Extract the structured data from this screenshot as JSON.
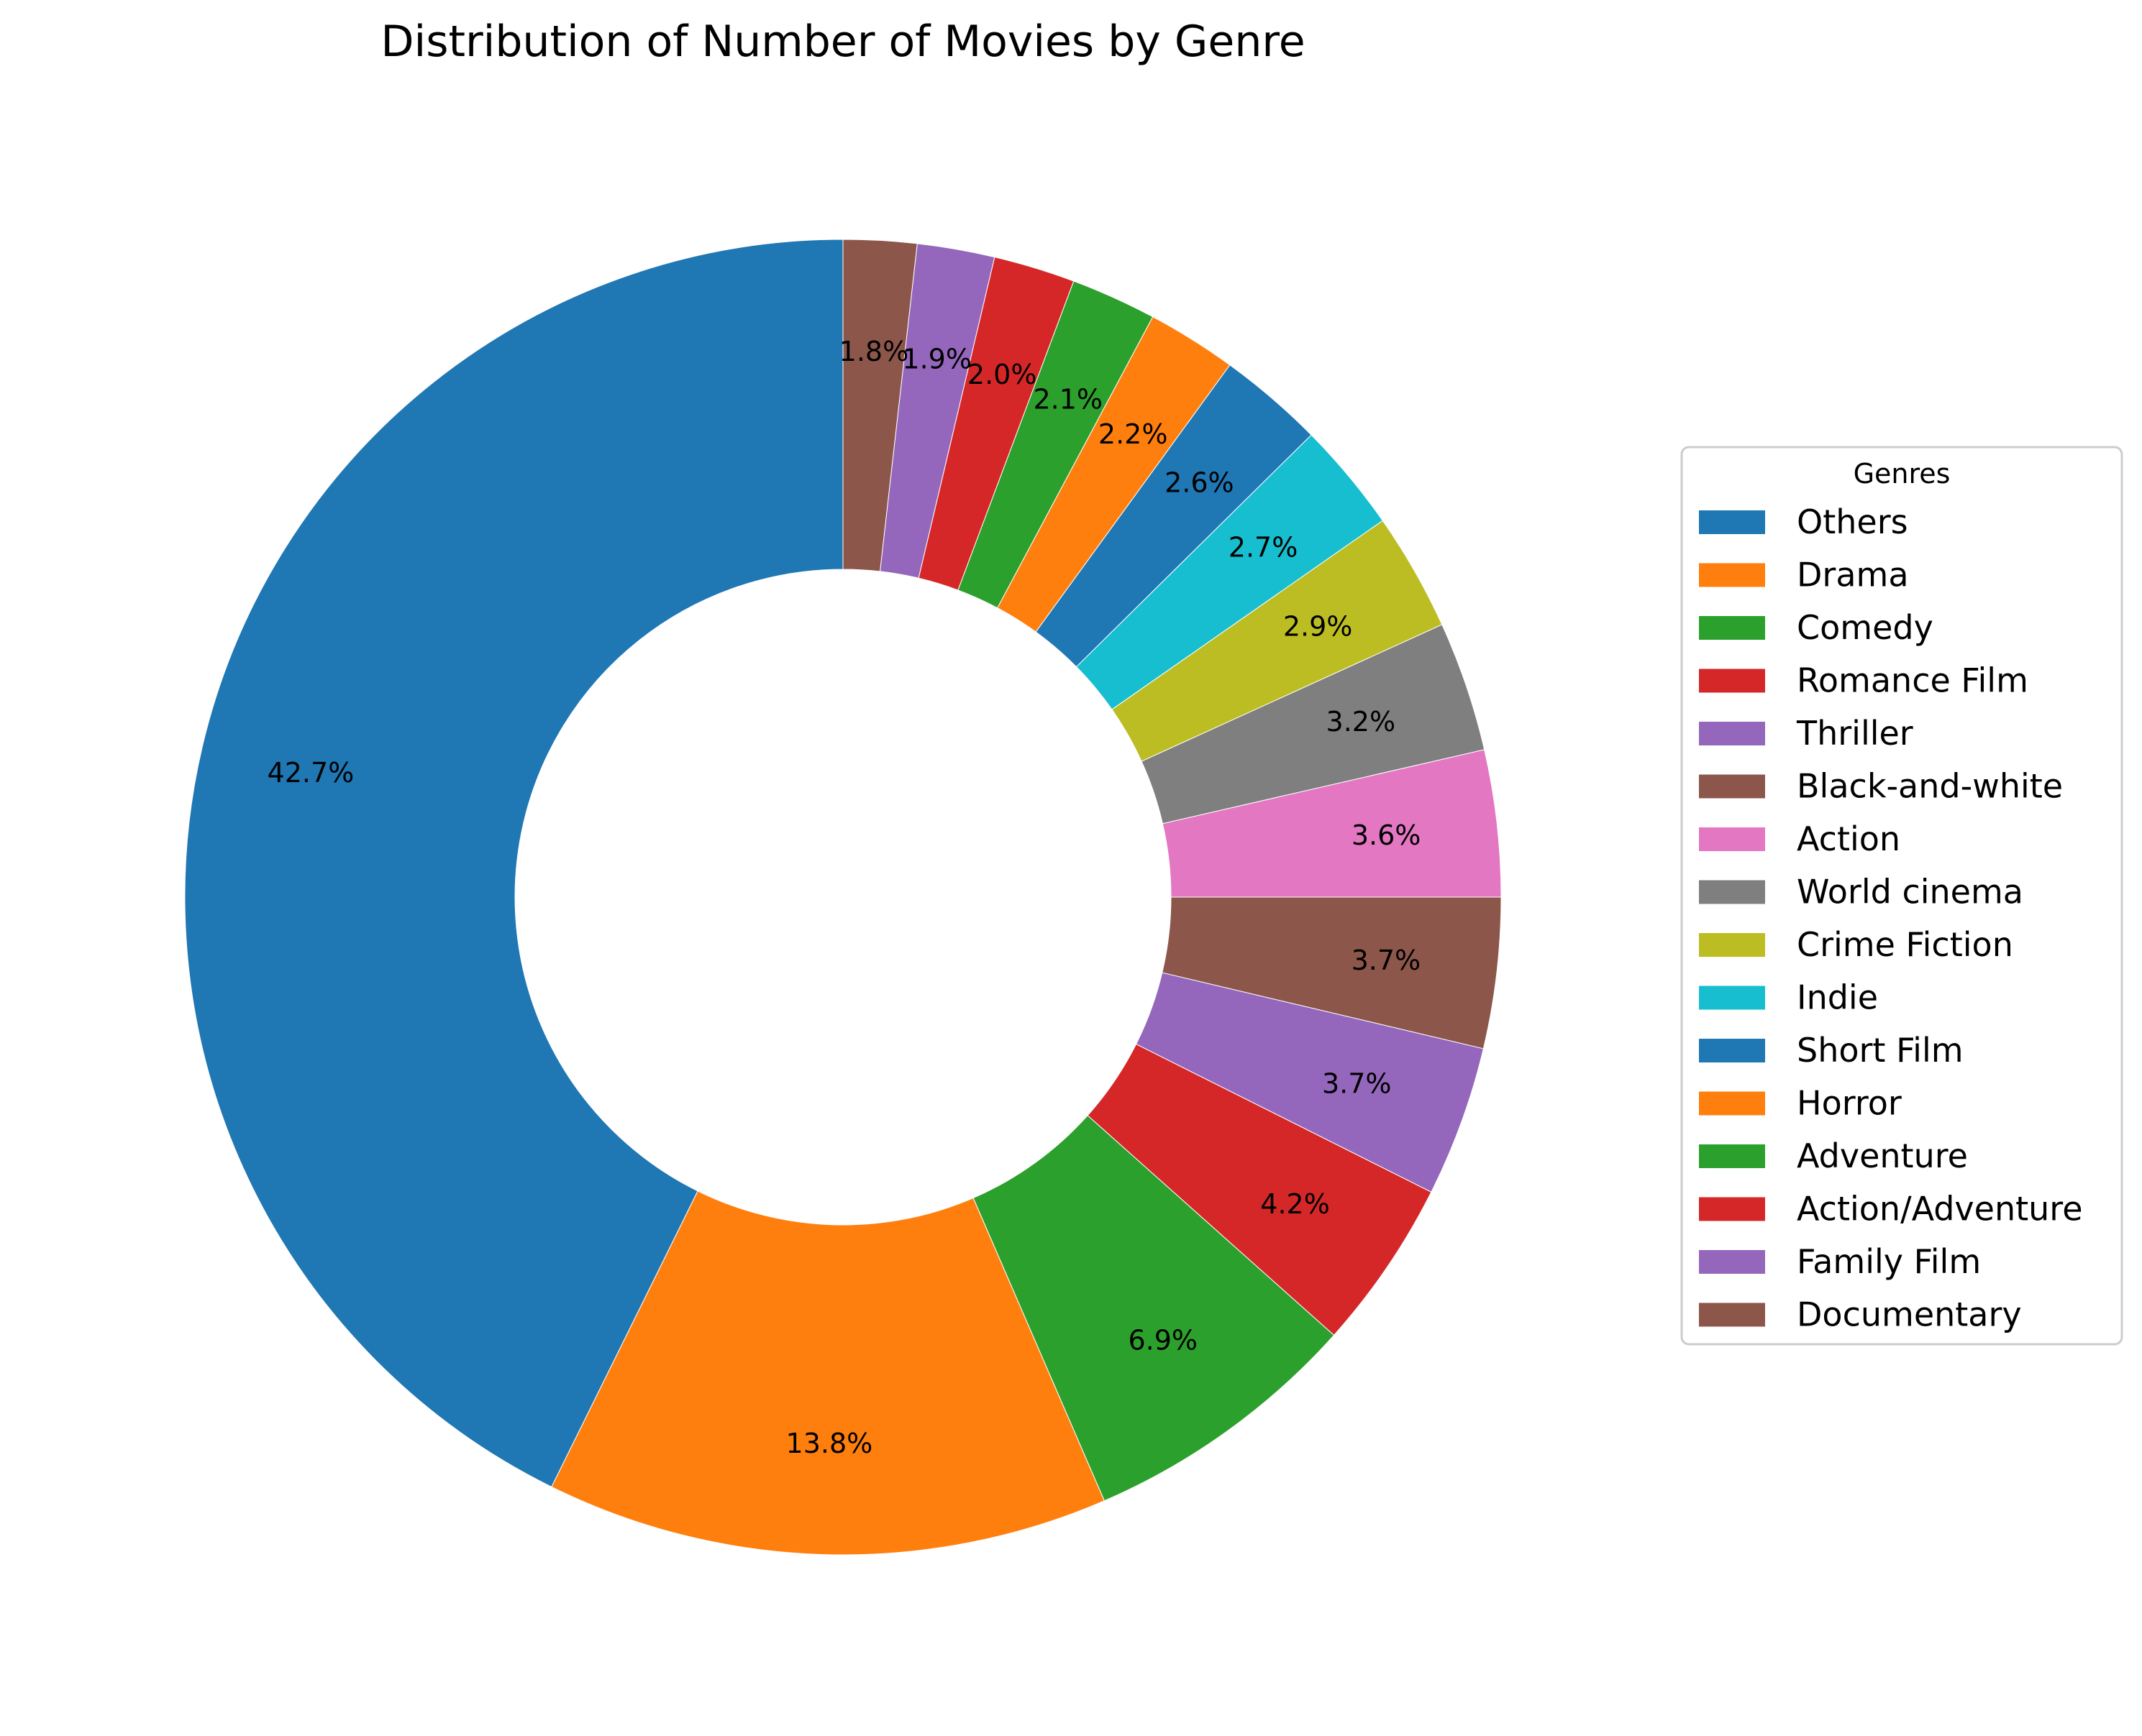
{
  "chart_data": {
    "type": "pie",
    "style": "donut",
    "title": "Distribution of Number of Movies by Genre",
    "legend_title": "Genres",
    "legend_placement": "right",
    "start_angle_deg": 90,
    "direction": "counterclockwise",
    "slices": [
      {
        "label": "Others",
        "value": 42.7,
        "pct_label": "42.7%",
        "color": "#1f77b4"
      },
      {
        "label": "Drama",
        "value": 13.8,
        "pct_label": "13.8%",
        "color": "#ff7f0e"
      },
      {
        "label": "Comedy",
        "value": 6.9,
        "pct_label": "6.9%",
        "color": "#2ca02c"
      },
      {
        "label": "Romance Film",
        "value": 4.2,
        "pct_label": "4.2%",
        "color": "#d62728"
      },
      {
        "label": "Thriller",
        "value": 3.7,
        "pct_label": "3.7%",
        "color": "#9467bd"
      },
      {
        "label": "Black-and-white",
        "value": 3.7,
        "pct_label": "3.7%",
        "color": "#8c564b"
      },
      {
        "label": "Action",
        "value": 3.6,
        "pct_label": "3.6%",
        "color": "#e377c2"
      },
      {
        "label": "World cinema",
        "value": 3.2,
        "pct_label": "3.2%",
        "color": "#7f7f7f"
      },
      {
        "label": "Crime Fiction",
        "value": 2.9,
        "pct_label": "2.9%",
        "color": "#bcbd22"
      },
      {
        "label": "Indie",
        "value": 2.7,
        "pct_label": "2.7%",
        "color": "#17becf"
      },
      {
        "label": "Short Film",
        "value": 2.6,
        "pct_label": "2.6%",
        "color": "#1f77b4"
      },
      {
        "label": "Horror",
        "value": 2.2,
        "pct_label": "2.2%",
        "color": "#ff7f0e"
      },
      {
        "label": "Adventure",
        "value": 2.1,
        "pct_label": "2.1%",
        "color": "#2ca02c"
      },
      {
        "label": "Action/Adventure",
        "value": 2.0,
        "pct_label": "2.0%",
        "color": "#d62728"
      },
      {
        "label": "Family Film",
        "value": 1.9,
        "pct_label": "1.9%",
        "color": "#9467bd"
      },
      {
        "label": "Documentary",
        "value": 1.8,
        "pct_label": "1.8%",
        "color": "#8c564b"
      }
    ]
  }
}
